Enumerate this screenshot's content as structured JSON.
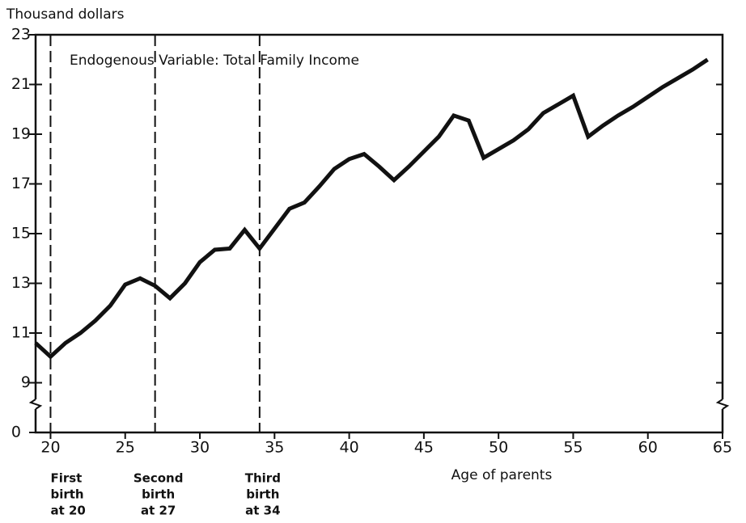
{
  "chart_data": {
    "type": "line",
    "title": "Endogenous Variable:  Total Family Income",
    "y_label": "Thousand dollars",
    "x_label": "Age of parents",
    "x": [
      19,
      20,
      21,
      22,
      23,
      24,
      25,
      26,
      27,
      28,
      29,
      30,
      31,
      32,
      33,
      34,
      35,
      36,
      37,
      38,
      39,
      40,
      41,
      42,
      43,
      44,
      45,
      46,
      47,
      48,
      49,
      50,
      51,
      52,
      53,
      54,
      55,
      56,
      57,
      58,
      59,
      60,
      61,
      62,
      63,
      64
    ],
    "series": [
      {
        "name": "Total Family Income",
        "color": "#111111",
        "values": [
          10.6,
          10.05,
          10.6,
          11.0,
          11.5,
          12.1,
          12.95,
          13.2,
          12.9,
          12.4,
          13.0,
          13.85,
          14.35,
          14.4,
          15.15,
          14.4,
          15.2,
          16.0,
          16.25,
          16.9,
          17.6,
          18.0,
          18.2,
          17.7,
          17.15,
          17.7,
          18.3,
          18.9,
          19.75,
          19.55,
          18.05,
          18.4,
          18.75,
          19.2,
          19.85,
          20.2,
          20.55,
          18.9,
          19.35,
          19.75,
          20.1,
          20.5,
          20.9,
          21.25,
          21.6,
          22.0
        ]
      }
    ],
    "xlim": [
      19,
      65
    ],
    "xticks": [
      20,
      25,
      30,
      35,
      40,
      45,
      50,
      55,
      60,
      65
    ],
    "ylim": [
      7,
      23
    ],
    "yticks": [
      9,
      11,
      13,
      15,
      17,
      19,
      21,
      23
    ],
    "y_break_origin": 0,
    "annotations": [
      {
        "x": 20,
        "lines": [
          "First",
          "birth",
          "at 20"
        ]
      },
      {
        "x": 27,
        "lines": [
          "Second",
          "birth",
          "at 27"
        ]
      },
      {
        "x": 34,
        "lines": [
          "Third",
          "birth",
          "at 34"
        ]
      }
    ]
  }
}
